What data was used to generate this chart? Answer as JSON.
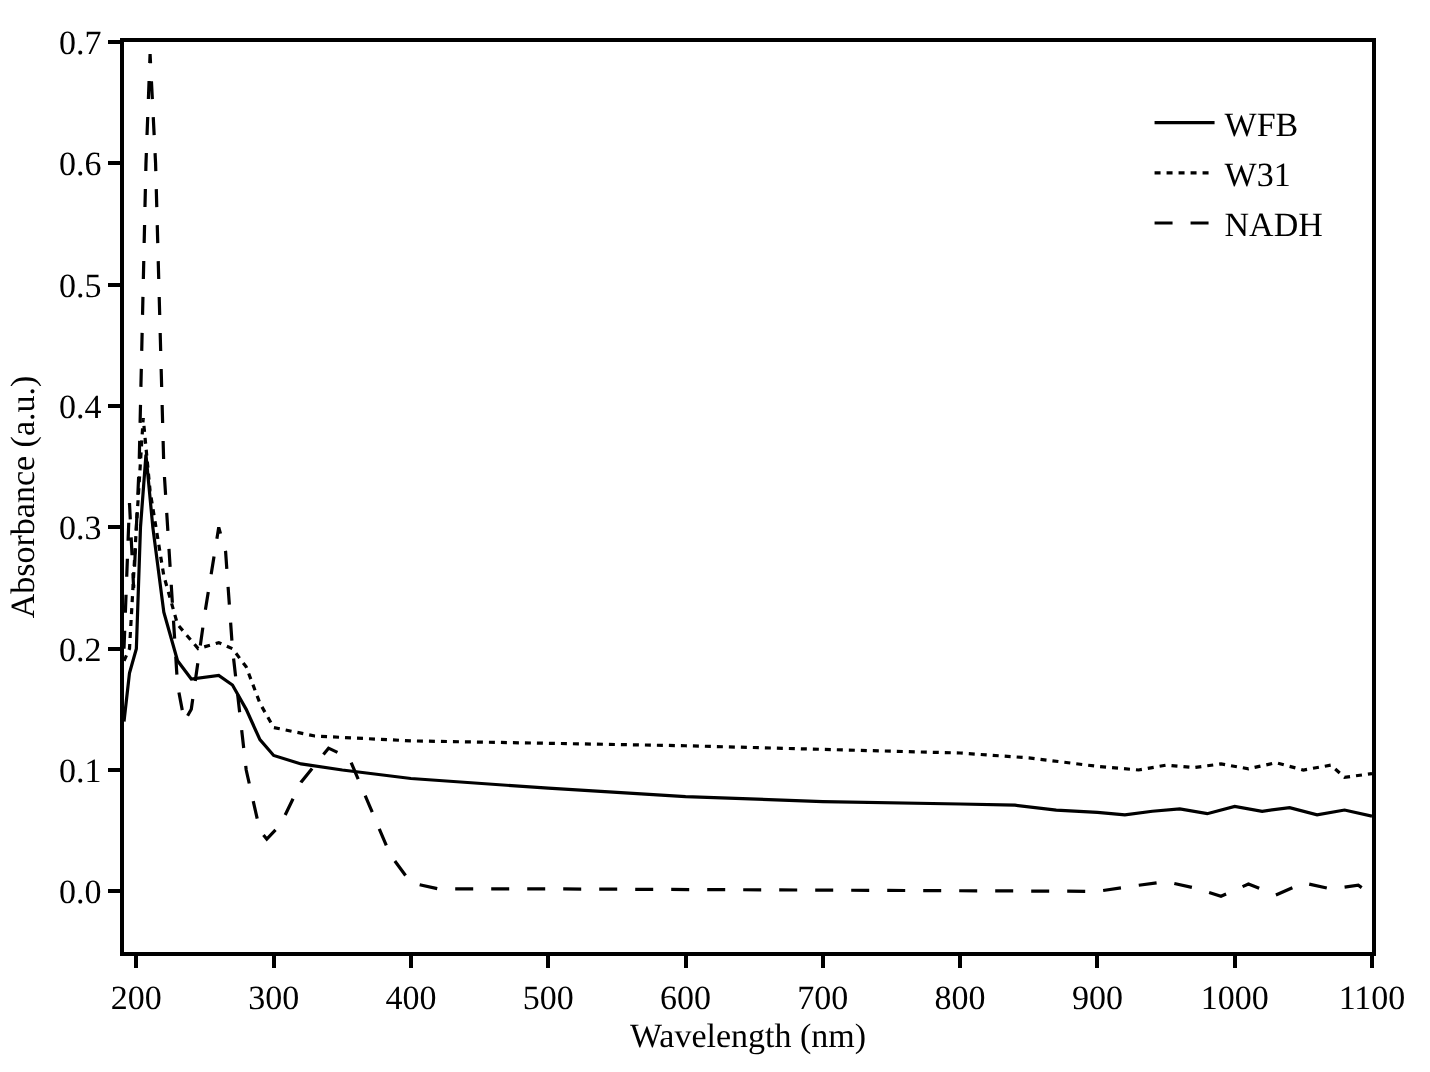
{
  "chart_data": {
    "type": "line",
    "xlabel": "Wavelength (nm)",
    "ylabel": "Absorbance (a.u.)",
    "xlim": [
      191,
      1100
    ],
    "xticks": [
      200,
      300,
      400,
      500,
      600,
      700,
      800,
      900,
      1000,
      1100
    ],
    "ylim": [
      -0.05,
      0.7
    ],
    "yticks": [
      {
        "value": 0,
        "label": "0.0"
      },
      0.1,
      0.2,
      0.3,
      0.4,
      0.5,
      0.6,
      0.7
    ],
    "grid": false,
    "legend": "top right",
    "marker": "none",
    "series": [
      {
        "name": "WFB",
        "color": "#000000",
        "line_style": "solid",
        "x": [
          191,
          195,
          200,
          203,
          207,
          212,
          220,
          230,
          240,
          260,
          270,
          280,
          290,
          300,
          320,
          350,
          400,
          500,
          600,
          700,
          800,
          840,
          870,
          900,
          920,
          940,
          960,
          980,
          1000,
          1020,
          1040,
          1060,
          1080,
          1100
        ],
        "values": [
          0.14,
          0.18,
          0.2,
          0.3,
          0.36,
          0.3,
          0.23,
          0.19,
          0.175,
          0.178,
          0.17,
          0.15,
          0.125,
          0.112,
          0.105,
          0.1,
          0.093,
          0.085,
          0.078,
          0.074,
          0.072,
          0.071,
          0.067,
          0.065,
          0.063,
          0.066,
          0.068,
          0.064,
          0.07,
          0.066,
          0.069,
          0.063,
          0.067,
          0.062
        ]
      },
      {
        "name": "W31",
        "color": "#000000",
        "line_style": "dotted",
        "x": [
          191,
          195,
          200,
          205,
          210,
          220,
          230,
          245,
          260,
          270,
          280,
          290,
          300,
          330,
          400,
          500,
          600,
          700,
          800,
          850,
          900,
          930,
          950,
          970,
          990,
          1010,
          1030,
          1050,
          1070,
          1080,
          1100
        ],
        "values": [
          0.19,
          0.2,
          0.3,
          0.39,
          0.33,
          0.26,
          0.22,
          0.2,
          0.205,
          0.2,
          0.185,
          0.155,
          0.135,
          0.128,
          0.124,
          0.122,
          0.12,
          0.117,
          0.114,
          0.11,
          0.103,
          0.1,
          0.104,
          0.102,
          0.105,
          0.101,
          0.106,
          0.1,
          0.104,
          0.094,
          0.097
        ]
      },
      {
        "name": "NADH",
        "color": "#000000",
        "line_style": "dashed",
        "x": [
          191,
          195,
          198,
          202,
          207,
          210,
          214,
          220,
          230,
          235,
          240,
          250,
          260,
          265,
          270,
          280,
          290,
          295,
          305,
          320,
          340,
          355,
          370,
          385,
          400,
          420,
          500,
          700,
          900,
          930,
          950,
          970,
          990,
          1010,
          1030,
          1050,
          1070,
          1090,
          1100
        ],
        "values": [
          0.2,
          0.32,
          0.25,
          0.35,
          0.6,
          0.69,
          0.6,
          0.35,
          0.17,
          0.14,
          0.15,
          0.23,
          0.3,
          0.28,
          0.2,
          0.1,
          0.05,
          0.043,
          0.055,
          0.09,
          0.118,
          0.11,
          0.07,
          0.03,
          0.007,
          0.002,
          0.002,
          0.001,
          0.0,
          0.005,
          0.008,
          0.003,
          -0.004,
          0.006,
          -0.003,
          0.007,
          0.002,
          0.005,
          -0.003
        ]
      }
    ]
  }
}
